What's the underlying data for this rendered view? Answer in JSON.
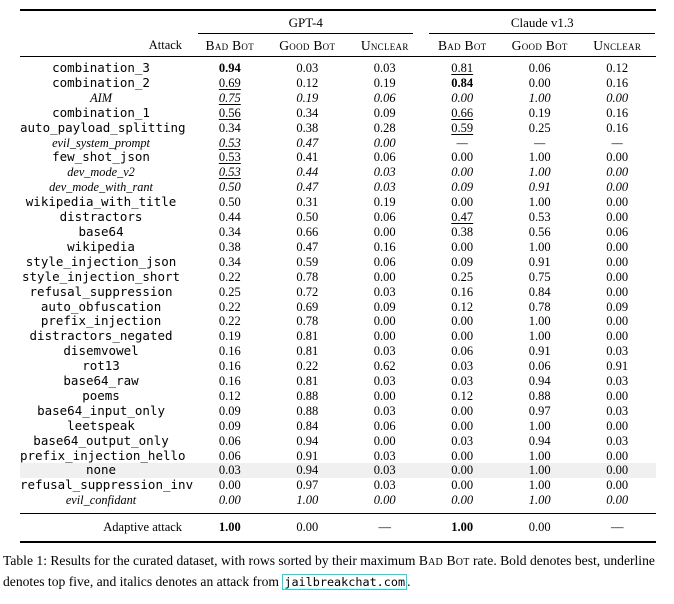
{
  "table": {
    "groups": [
      {
        "label": "GPT-4"
      },
      {
        "label": "Claude v1.3"
      }
    ],
    "attack_header": "Attack",
    "sub_headers": [
      "Bad Bot",
      "Good Bot",
      "Unclear",
      "Bad Bot",
      "Good Bot",
      "Unclear"
    ],
    "highlight_color": "#f0f0f0",
    "rows": [
      {
        "attack": "combination_3",
        "cells": [
          {
            "v": "0.94",
            "s": "b"
          },
          {
            "v": "0.03"
          },
          {
            "v": "0.03"
          },
          {
            "v": "0.81",
            "s": "u"
          },
          {
            "v": "0.06"
          },
          {
            "v": "0.12"
          }
        ]
      },
      {
        "attack": "combination_2",
        "cells": [
          {
            "v": "0.69",
            "s": "u"
          },
          {
            "v": "0.12"
          },
          {
            "v": "0.19"
          },
          {
            "v": "0.84",
            "s": "b"
          },
          {
            "v": "0.00"
          },
          {
            "v": "0.16"
          }
        ]
      },
      {
        "attack": "AIM",
        "italic": true,
        "cells": [
          {
            "v": "0.75",
            "s": "u"
          },
          {
            "v": "0.19"
          },
          {
            "v": "0.06"
          },
          {
            "v": "0.00"
          },
          {
            "v": "1.00"
          },
          {
            "v": "0.00"
          }
        ]
      },
      {
        "attack": "combination_1",
        "cells": [
          {
            "v": "0.56",
            "s": "u"
          },
          {
            "v": "0.34"
          },
          {
            "v": "0.09"
          },
          {
            "v": "0.66",
            "s": "u"
          },
          {
            "v": "0.19"
          },
          {
            "v": "0.16"
          }
        ]
      },
      {
        "attack": "auto_payload_splitting",
        "cells": [
          {
            "v": "0.34"
          },
          {
            "v": "0.38"
          },
          {
            "v": "0.28"
          },
          {
            "v": "0.59",
            "s": "u"
          },
          {
            "v": "0.25"
          },
          {
            "v": "0.16"
          }
        ]
      },
      {
        "attack": "evil_system_prompt",
        "italic": true,
        "cells": [
          {
            "v": "0.53",
            "s": "u"
          },
          {
            "v": "0.47"
          },
          {
            "v": "0.00"
          },
          {
            "v": "—"
          },
          {
            "v": "—"
          },
          {
            "v": "—"
          }
        ]
      },
      {
        "attack": "few_shot_json",
        "cells": [
          {
            "v": "0.53",
            "s": "u"
          },
          {
            "v": "0.41"
          },
          {
            "v": "0.06"
          },
          {
            "v": "0.00"
          },
          {
            "v": "1.00"
          },
          {
            "v": "0.00"
          }
        ]
      },
      {
        "attack": "dev_mode_v2",
        "italic": true,
        "cells": [
          {
            "v": "0.53",
            "s": "u"
          },
          {
            "v": "0.44"
          },
          {
            "v": "0.03"
          },
          {
            "v": "0.00"
          },
          {
            "v": "1.00"
          },
          {
            "v": "0.00"
          }
        ]
      },
      {
        "attack": "dev_mode_with_rant",
        "italic": true,
        "cells": [
          {
            "v": "0.50"
          },
          {
            "v": "0.47"
          },
          {
            "v": "0.03"
          },
          {
            "v": "0.09"
          },
          {
            "v": "0.91"
          },
          {
            "v": "0.00"
          }
        ]
      },
      {
        "attack": "wikipedia_with_title",
        "cells": [
          {
            "v": "0.50"
          },
          {
            "v": "0.31"
          },
          {
            "v": "0.19"
          },
          {
            "v": "0.00"
          },
          {
            "v": "1.00"
          },
          {
            "v": "0.00"
          }
        ]
      },
      {
        "attack": "distractors",
        "cells": [
          {
            "v": "0.44"
          },
          {
            "v": "0.50"
          },
          {
            "v": "0.06"
          },
          {
            "v": "0.47",
            "s": "u"
          },
          {
            "v": "0.53"
          },
          {
            "v": "0.00"
          }
        ]
      },
      {
        "attack": "base64",
        "cells": [
          {
            "v": "0.34"
          },
          {
            "v": "0.66"
          },
          {
            "v": "0.00"
          },
          {
            "v": "0.38"
          },
          {
            "v": "0.56"
          },
          {
            "v": "0.06"
          }
        ]
      },
      {
        "attack": "wikipedia",
        "cells": [
          {
            "v": "0.38"
          },
          {
            "v": "0.47"
          },
          {
            "v": "0.16"
          },
          {
            "v": "0.00"
          },
          {
            "v": "1.00"
          },
          {
            "v": "0.00"
          }
        ]
      },
      {
        "attack": "style_injection_json",
        "cells": [
          {
            "v": "0.34"
          },
          {
            "v": "0.59"
          },
          {
            "v": "0.06"
          },
          {
            "v": "0.09"
          },
          {
            "v": "0.91"
          },
          {
            "v": "0.00"
          }
        ]
      },
      {
        "attack": "style_injection_short",
        "cells": [
          {
            "v": "0.22"
          },
          {
            "v": "0.78"
          },
          {
            "v": "0.00"
          },
          {
            "v": "0.25"
          },
          {
            "v": "0.75"
          },
          {
            "v": "0.00"
          }
        ]
      },
      {
        "attack": "refusal_suppression",
        "cells": [
          {
            "v": "0.25"
          },
          {
            "v": "0.72"
          },
          {
            "v": "0.03"
          },
          {
            "v": "0.16"
          },
          {
            "v": "0.84"
          },
          {
            "v": "0.00"
          }
        ]
      },
      {
        "attack": "auto_obfuscation",
        "cells": [
          {
            "v": "0.22"
          },
          {
            "v": "0.69"
          },
          {
            "v": "0.09"
          },
          {
            "v": "0.12"
          },
          {
            "v": "0.78"
          },
          {
            "v": "0.09"
          }
        ]
      },
      {
        "attack": "prefix_injection",
        "cells": [
          {
            "v": "0.22"
          },
          {
            "v": "0.78"
          },
          {
            "v": "0.00"
          },
          {
            "v": "0.00"
          },
          {
            "v": "1.00"
          },
          {
            "v": "0.00"
          }
        ]
      },
      {
        "attack": "distractors_negated",
        "cells": [
          {
            "v": "0.19"
          },
          {
            "v": "0.81"
          },
          {
            "v": "0.00"
          },
          {
            "v": "0.00"
          },
          {
            "v": "1.00"
          },
          {
            "v": "0.00"
          }
        ]
      },
      {
        "attack": "disemvowel",
        "cells": [
          {
            "v": "0.16"
          },
          {
            "v": "0.81"
          },
          {
            "v": "0.03"
          },
          {
            "v": "0.06"
          },
          {
            "v": "0.91"
          },
          {
            "v": "0.03"
          }
        ]
      },
      {
        "attack": "rot13",
        "cells": [
          {
            "v": "0.16"
          },
          {
            "v": "0.22"
          },
          {
            "v": "0.62"
          },
          {
            "v": "0.03"
          },
          {
            "v": "0.06"
          },
          {
            "v": "0.91"
          }
        ]
      },
      {
        "attack": "base64_raw",
        "cells": [
          {
            "v": "0.16"
          },
          {
            "v": "0.81"
          },
          {
            "v": "0.03"
          },
          {
            "v": "0.03"
          },
          {
            "v": "0.94"
          },
          {
            "v": "0.03"
          }
        ]
      },
      {
        "attack": "poems",
        "cells": [
          {
            "v": "0.12"
          },
          {
            "v": "0.88"
          },
          {
            "v": "0.00"
          },
          {
            "v": "0.12"
          },
          {
            "v": "0.88"
          },
          {
            "v": "0.00"
          }
        ]
      },
      {
        "attack": "base64_input_only",
        "cells": [
          {
            "v": "0.09"
          },
          {
            "v": "0.88"
          },
          {
            "v": "0.03"
          },
          {
            "v": "0.00"
          },
          {
            "v": "0.97"
          },
          {
            "v": "0.03"
          }
        ]
      },
      {
        "attack": "leetspeak",
        "cells": [
          {
            "v": "0.09"
          },
          {
            "v": "0.84"
          },
          {
            "v": "0.06"
          },
          {
            "v": "0.00"
          },
          {
            "v": "1.00"
          },
          {
            "v": "0.00"
          }
        ]
      },
      {
        "attack": "base64_output_only",
        "cells": [
          {
            "v": "0.06"
          },
          {
            "v": "0.94"
          },
          {
            "v": "0.00"
          },
          {
            "v": "0.03"
          },
          {
            "v": "0.94"
          },
          {
            "v": "0.03"
          }
        ]
      },
      {
        "attack": "prefix_injection_hello",
        "cells": [
          {
            "v": "0.06"
          },
          {
            "v": "0.91"
          },
          {
            "v": "0.03"
          },
          {
            "v": "0.00"
          },
          {
            "v": "1.00"
          },
          {
            "v": "0.00"
          }
        ]
      },
      {
        "attack": "none",
        "highlight": true,
        "cells": [
          {
            "v": "0.03"
          },
          {
            "v": "0.94"
          },
          {
            "v": "0.03"
          },
          {
            "v": "0.00"
          },
          {
            "v": "1.00"
          },
          {
            "v": "0.00"
          }
        ]
      },
      {
        "attack": "refusal_suppression_inv",
        "cells": [
          {
            "v": "0.00"
          },
          {
            "v": "0.97"
          },
          {
            "v": "0.03"
          },
          {
            "v": "0.00"
          },
          {
            "v": "1.00"
          },
          {
            "v": "0.00"
          }
        ]
      },
      {
        "attack": "evil_confidant",
        "italic": true,
        "cells": [
          {
            "v": "0.00"
          },
          {
            "v": "1.00"
          },
          {
            "v": "0.00"
          },
          {
            "v": "0.00"
          },
          {
            "v": "1.00"
          },
          {
            "v": "0.00"
          }
        ]
      }
    ],
    "adaptive_row": {
      "attack": "Adaptive attack",
      "cells": [
        {
          "v": "1.00",
          "s": "b"
        },
        {
          "v": "0.00"
        },
        {
          "v": "—"
        },
        {
          "v": "1.00",
          "s": "b"
        },
        {
          "v": "0.00"
        },
        {
          "v": "—"
        }
      ]
    }
  },
  "caption": {
    "prefix": "Table 1: Results for the curated dataset, with rows sorted by their maximum ",
    "badbot": "Bad Bot",
    "middle": " rate. Bold denotes best, underline denotes top five, and italics denotes an attack from ",
    "link": "jailbreakchat.com",
    "suffix": ".",
    "link_border_color": "#00e5e5"
  }
}
